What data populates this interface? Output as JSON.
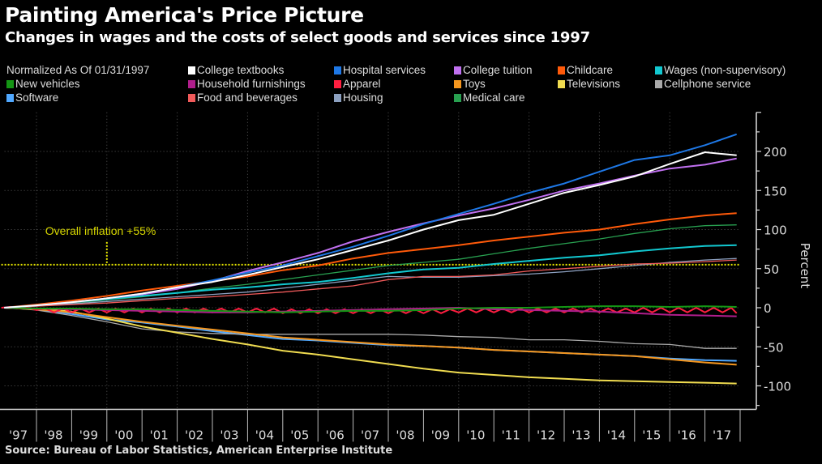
{
  "chart_data": {
    "type": "line",
    "title": "Painting America's Price Picture",
    "subtitle": "Changes in wages and the costs of select goods and services since 1997",
    "legend_note": "Normalized As Of 01/31/1997",
    "ylabel": "Percent",
    "ylim": [
      -130,
      250
    ],
    "xlim": [
      1997,
      2018
    ],
    "yticks": [
      -100,
      -50,
      0,
      50,
      100,
      150,
      200
    ],
    "ytick_labels": [
      "-100",
      "-50",
      "0",
      "50",
      "100",
      "150",
      "200"
    ],
    "xtick_labels": [
      "'97",
      "'98",
      "'99",
      "'00",
      "'01",
      "'02",
      "'03",
      "'04",
      "'05",
      "'06",
      "'07",
      "'08",
      "'09",
      "'10",
      "'11",
      "'12",
      "'13",
      "'14",
      "'15",
      "'16",
      "'17"
    ],
    "grid": true,
    "legend_placement": "top",
    "reference_line": {
      "value": 55,
      "label": "Overall inflation +55%",
      "color": "#e6e600",
      "label_x": 2000
    },
    "x": [
      1997.08,
      1998,
      1999,
      2000,
      2001,
      2002,
      2003,
      2004,
      2005,
      2006,
      2007,
      2008,
      2009,
      2010,
      2011,
      2012,
      2013,
      2014,
      2015,
      2016,
      2017,
      2017.9
    ],
    "series": [
      {
        "name": "College textbooks",
        "color": "#ffffff",
        "values": [
          0,
          3,
          7,
          12,
          18,
          26,
          33,
          42,
          52,
          62,
          74,
          86,
          100,
          112,
          119,
          133,
          147,
          157,
          168,
          184,
          199,
          195
        ]
      },
      {
        "name": "Hospital services",
        "color": "#1e78e6",
        "values": [
          0,
          3,
          7,
          12,
          18,
          26,
          35,
          45,
          54,
          66,
          78,
          92,
          107,
          120,
          133,
          147,
          159,
          174,
          189,
          195,
          208,
          222
        ]
      },
      {
        "name": "College tuition",
        "color": "#c070f0",
        "values": [
          0,
          3,
          7,
          12,
          17,
          24,
          34,
          47,
          58,
          70,
          85,
          97,
          108,
          118,
          127,
          138,
          150,
          159,
          169,
          178,
          183,
          191
        ]
      },
      {
        "name": "Childcare",
        "color": "#ff5a0a",
        "values": [
          0,
          4,
          9,
          15,
          22,
          28,
          34,
          40,
          48,
          54,
          63,
          70,
          75,
          80,
          86,
          91,
          96,
          100,
          107,
          113,
          118,
          121
        ]
      },
      {
        "name": "Wages (non-supervisory)",
        "color": "#12c8d0",
        "values": [
          0,
          3,
          7,
          11,
          15,
          19,
          23,
          26,
          30,
          33,
          38,
          44,
          49,
          51,
          56,
          60,
          64,
          67,
          72,
          76,
          79,
          80
        ]
      },
      {
        "name": "New vehicles",
        "color": "#149614",
        "values": [
          0,
          -1,
          -1,
          -2,
          -2,
          -3,
          -4,
          -5,
          -6,
          -5,
          -4,
          -4,
          -3,
          -1,
          0,
          0,
          1,
          2,
          2,
          1,
          2,
          1
        ]
      },
      {
        "name": "Household furnishings",
        "color": "#b01e8c",
        "values": [
          0,
          -1,
          -2,
          -3,
          -4,
          -5,
          -6,
          -6,
          -5,
          -4,
          -3,
          -2,
          -1,
          0,
          -2,
          -3,
          -4,
          -5,
          -7,
          -9,
          -10,
          -11
        ]
      },
      {
        "name": "Apparel",
        "color": "#ff1e40",
        "x": [
          1997,
          1997.25,
          1997.5,
          1997.75,
          1998,
          1998.25,
          1998.5,
          1998.75,
          1999,
          1999.25,
          1999.5,
          1999.75,
          2000,
          2000.25,
          2000.5,
          2000.75,
          2001,
          2001.25,
          2001.5,
          2001.75,
          2002,
          2002.25,
          2002.5,
          2002.75,
          2003,
          2003.25,
          2003.5,
          2003.75,
          2004,
          2004.25,
          2004.5,
          2004.75,
          2005,
          2005.25,
          2005.5,
          2005.75,
          2006,
          2006.25,
          2006.5,
          2006.75,
          2007,
          2007.25,
          2007.5,
          2007.75,
          2008,
          2008.25,
          2008.5,
          2008.75,
          2009,
          2009.25,
          2009.5,
          2009.75,
          2010,
          2010.25,
          2010.5,
          2010.75,
          2011,
          2011.25,
          2011.5,
          2011.75,
          2012,
          2012.25,
          2012.5,
          2012.75,
          2013,
          2013.25,
          2013.5,
          2013.75,
          2014,
          2014.25,
          2014.5,
          2014.75,
          2015,
          2015.25,
          2015.5,
          2015.75,
          2016,
          2016.25,
          2016.5,
          2016.75,
          2017,
          2017.25,
          2017.5,
          2017.75,
          2017.9
        ],
        "values": [
          0,
          1,
          -1,
          0,
          -3,
          -1,
          -6,
          -1,
          -6,
          -1,
          -6,
          -1,
          -6,
          -1,
          -6,
          -1,
          -6,
          -1,
          -6,
          -1,
          -6,
          -1,
          -6,
          -1,
          -6,
          -1,
          -6,
          -1,
          -6,
          -1,
          -6,
          -1,
          -7,
          -2,
          -7,
          -2,
          -7,
          -2,
          -7,
          -2,
          -7,
          -2,
          -7,
          -2,
          -7,
          -2,
          -7,
          -2,
          -7,
          -2,
          -7,
          -2,
          -6,
          -1,
          -6,
          -1,
          -6,
          -1,
          -6,
          -1,
          -6,
          -1,
          -6,
          -1,
          -6,
          -1,
          -6,
          -1,
          -6,
          -1,
          -6,
          -1,
          -6,
          0,
          -6,
          0,
          -6,
          0,
          -6,
          0,
          -6,
          0,
          -6,
          0,
          -7
        ]
      },
      {
        "name": "Toys",
        "color": "#f5961e",
        "values": [
          0,
          -2,
          -6,
          -12,
          -18,
          -23,
          -28,
          -33,
          -38,
          -41,
          -44,
          -47,
          -49,
          -51,
          -54,
          -56,
          -58,
          -60,
          -62,
          -66,
          -70,
          -73
        ]
      },
      {
        "name": "Televisions",
        "color": "#f0dc50",
        "values": [
          0,
          -1,
          -5,
          -14,
          -24,
          -32,
          -40,
          -47,
          -55,
          -60,
          -66,
          -72,
          -78,
          -83,
          -86,
          -89,
          -91,
          -93,
          -94,
          -95,
          -96,
          -97
        ]
      },
      {
        "name": "Cellphone service",
        "color": "#aaaaaa",
        "values": [
          0,
          -3,
          -10,
          -18,
          -27,
          -31,
          -33,
          -34,
          -34,
          -34,
          -34,
          -34,
          -35,
          -37,
          -38,
          -41,
          -41,
          -43,
          -46,
          -47,
          -52,
          -52
        ]
      },
      {
        "name": "Software",
        "color": "#50a8ff",
        "values": [
          0,
          -2,
          -8,
          -15,
          -19,
          -24,
          -30,
          -35,
          -40,
          -42,
          -45,
          -48,
          -49,
          -51,
          -54,
          -56,
          -58,
          -60,
          -62,
          -65,
          -67,
          -68
        ]
      },
      {
        "name": "Food and beverages",
        "color": "#f05a5a",
        "values": [
          0,
          2,
          4,
          6,
          9,
          12,
          14,
          17,
          20,
          24,
          28,
          36,
          40,
          40,
          42,
          47,
          50,
          53,
          56,
          57,
          59,
          61
        ]
      },
      {
        "name": "Housing",
        "color": "#8ca0c0",
        "values": [
          0,
          2,
          5,
          8,
          11,
          14,
          17,
          20,
          25,
          30,
          35,
          40,
          39,
          39,
          41,
          43,
          46,
          50,
          54,
          58,
          61,
          63
        ]
      },
      {
        "name": "Medical care",
        "color": "#28a050",
        "values": [
          0,
          3,
          6,
          10,
          14,
          19,
          25,
          30,
          36,
          42,
          48,
          54,
          58,
          62,
          69,
          76,
          82,
          88,
          95,
          101,
          105,
          106
        ]
      }
    ]
  },
  "source": "Source: Bureau of Labor Statistics, American Enterprise Institute"
}
